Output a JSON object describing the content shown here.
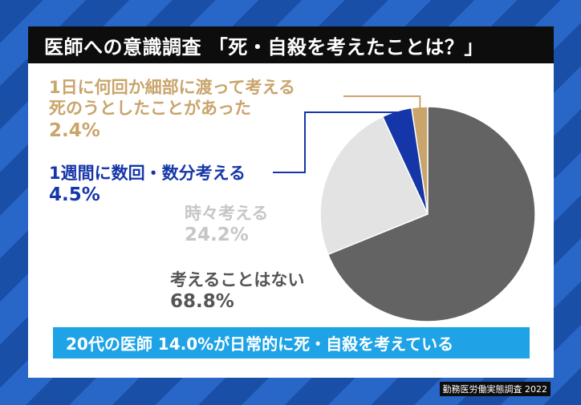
{
  "title": "医師への意識調査 「死・自殺を考えたことは？」",
  "banner": "20代の医師 14.0%が日常的に死・自殺を考えている",
  "source": "勤務医労働実態調査 2022",
  "chart_data": {
    "type": "pie",
    "slices": [
      {
        "label": "1日に何回か細部に渡って考える死のうとしたことがあった",
        "value": 2.4,
        "value_text": "2.4%",
        "color": "#c9a46b"
      },
      {
        "label": "1週間に数回・数分考える",
        "value": 4.5,
        "value_text": "4.5%",
        "color": "#1536a8"
      },
      {
        "label": "時々考える",
        "value": 24.2,
        "value_text": "24.2%",
        "color": "#e3e3e3"
      },
      {
        "label": "考えることはない",
        "value": 68.8,
        "value_text": "68.8%",
        "color": "#636363"
      }
    ],
    "label_lines": [
      [
        "1日に何回か細部に渡って考える",
        "死のうとしたことがあった"
      ],
      [
        "1週間に数回・数分考える"
      ],
      [
        "時々考える"
      ],
      [
        "考えることはない"
      ]
    ],
    "label_colors": [
      "#c9a46b",
      "#1536a8",
      "#c6c6c6",
      "#555555"
    ]
  }
}
